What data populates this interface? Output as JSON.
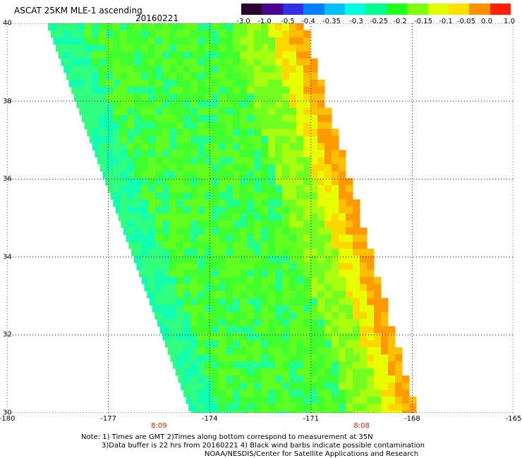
{
  "header": {
    "title": "ASCAT 25KM MLE-1 ascending",
    "date": "20160221"
  },
  "colorbar": {
    "labels": [
      "-3.0",
      "-1.0",
      "-0.5",
      "-0.4",
      "-0.35",
      "-0.3",
      "-0.25",
      "-0.2",
      "-0.15",
      "-0.1",
      "-0.05",
      "0.0",
      "1.0"
    ],
    "colors": [
      "#2a0030",
      "#4a0090",
      "#3030e8",
      "#0080ff",
      "#00c0ff",
      "#00ffe0",
      "#00ff90",
      "#20ff20",
      "#80ff10",
      "#e0ff00",
      "#ffe000",
      "#ff9000",
      "#ff2000"
    ]
  },
  "map": {
    "x_ticks": [
      "-180",
      "-177",
      "-174",
      "-171",
      "-168",
      "-165"
    ],
    "y_ticks": [
      "40",
      "38",
      "36",
      "34",
      "32",
      "30"
    ],
    "times": [
      {
        "label": "8:09",
        "lon": -175.5
      },
      {
        "label": "8:08",
        "lon": -169.5
      }
    ],
    "lon_range": [
      -180,
      -165
    ],
    "lat_range": [
      30,
      40
    ]
  },
  "notes": {
    "line1": "Note: 1) Times are GMT 2)Times along bottom correspond to measurement at 35N",
    "line2": "3)Data buffer is 22 hrs from 20160221 4) Black wind barbs indicate possible contamination",
    "line3": "NOAA/NESDIS/Center for Satellite Applications and Research"
  }
}
